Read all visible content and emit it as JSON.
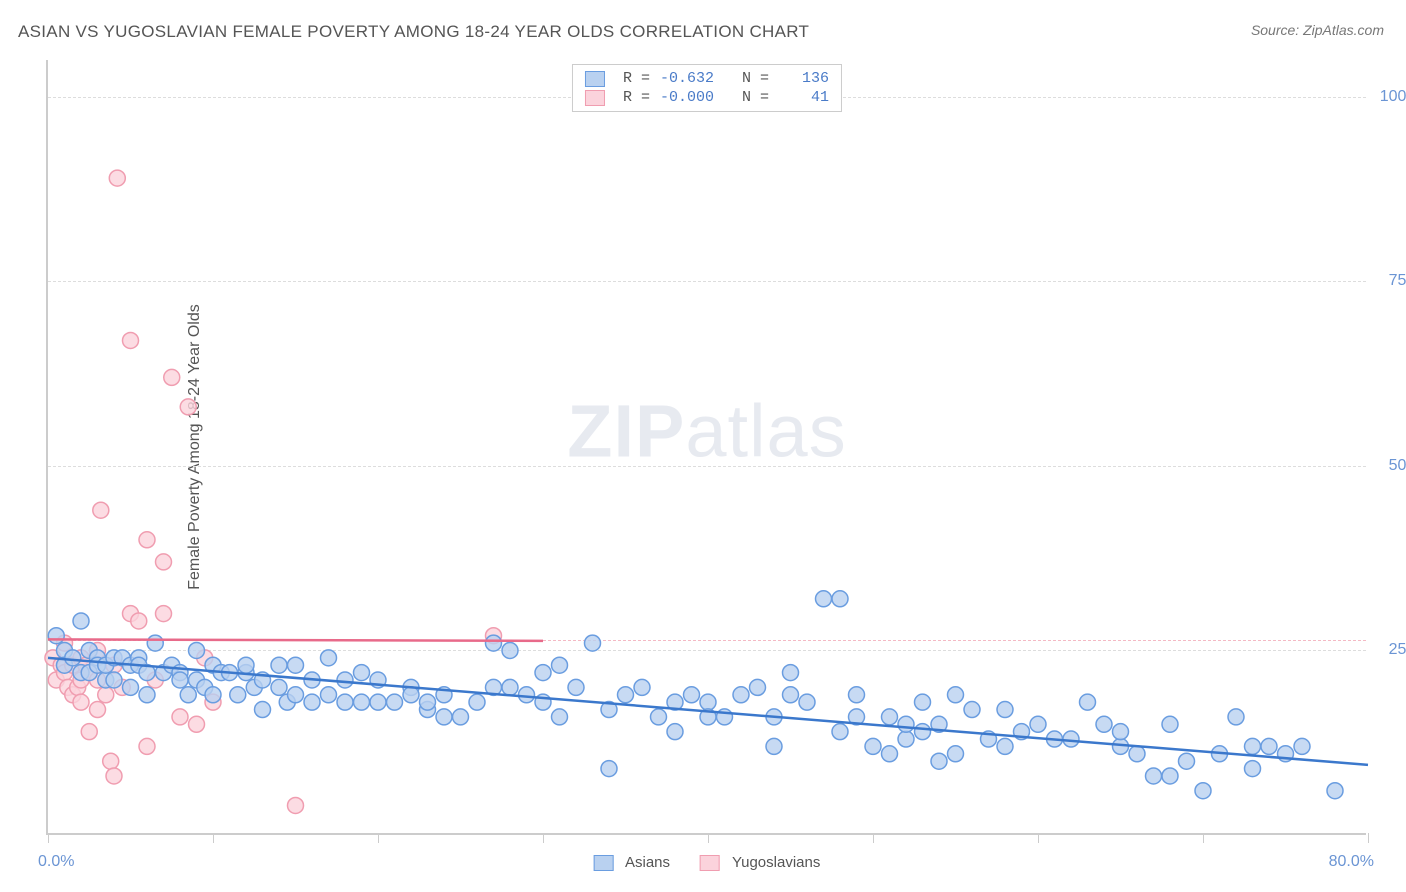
{
  "title": "ASIAN VS YUGOSLAVIAN FEMALE POVERTY AMONG 18-24 YEAR OLDS CORRELATION CHART",
  "source": "Source: ZipAtlas.com",
  "ylabel": "Female Poverty Among 18-24 Year Olds",
  "watermark_bold": "ZIP",
  "watermark_rest": "atlas",
  "chart": {
    "type": "scatter",
    "background_color": "#ffffff",
    "grid_color": "#dddddd",
    "axis_color": "#cccccc",
    "xlim": [
      0,
      80
    ],
    "ylim": [
      0,
      105
    ],
    "x_left_label": "0.0%",
    "x_right_label": "80.0%",
    "xtick_positions": [
      0,
      10,
      20,
      30,
      40,
      50,
      60,
      70,
      80
    ],
    "yticks": [
      {
        "value": 25,
        "label": "25.0%"
      },
      {
        "value": 50,
        "label": "50.0%"
      },
      {
        "value": 75,
        "label": "75.0%"
      },
      {
        "value": 100,
        "label": "100.0%"
      }
    ],
    "marker_radius": 8,
    "marker_stroke_width": 1.5,
    "reg_line_width": 2.5,
    "label_fontsize": 16,
    "tick_fontsize": 16,
    "series": {
      "asians": {
        "label": "Asians",
        "fill": "#b9d1f0",
        "stroke": "#6a9de0",
        "reg_color": "#3b78cc",
        "R": "-0.632",
        "N": "136",
        "reg_line": {
          "x1": 0,
          "y1": 24,
          "x2": 80,
          "y2": 9.5
        },
        "points": [
          [
            0.5,
            27
          ],
          [
            1,
            25
          ],
          [
            1,
            23
          ],
          [
            1.5,
            24
          ],
          [
            2,
            29
          ],
          [
            2,
            22
          ],
          [
            2.5,
            22
          ],
          [
            2.5,
            25
          ],
          [
            3,
            24
          ],
          [
            3,
            23
          ],
          [
            3.5,
            21
          ],
          [
            3.5,
            23
          ],
          [
            4,
            21
          ],
          [
            4,
            24
          ],
          [
            4.5,
            24
          ],
          [
            5,
            23
          ],
          [
            5,
            20
          ],
          [
            5.5,
            24
          ],
          [
            5.5,
            23
          ],
          [
            6,
            22
          ],
          [
            6,
            19
          ],
          [
            6.5,
            26
          ],
          [
            7,
            22
          ],
          [
            7.5,
            23
          ],
          [
            8,
            22
          ],
          [
            8,
            21
          ],
          [
            8.5,
            19
          ],
          [
            9,
            21
          ],
          [
            9,
            25
          ],
          [
            9.5,
            20
          ],
          [
            10,
            23
          ],
          [
            10,
            19
          ],
          [
            10.5,
            22
          ],
          [
            11,
            22
          ],
          [
            11.5,
            19
          ],
          [
            12,
            22
          ],
          [
            12,
            23
          ],
          [
            12.5,
            20
          ],
          [
            13,
            21
          ],
          [
            13,
            17
          ],
          [
            14,
            20
          ],
          [
            14,
            23
          ],
          [
            14.5,
            18
          ],
          [
            15,
            23
          ],
          [
            15,
            19
          ],
          [
            16,
            21
          ],
          [
            16,
            18
          ],
          [
            17,
            19
          ],
          [
            17,
            24
          ],
          [
            18,
            18
          ],
          [
            18,
            21
          ],
          [
            19,
            18
          ],
          [
            19,
            22
          ],
          [
            20,
            18
          ],
          [
            20,
            21
          ],
          [
            21,
            18
          ],
          [
            22,
            20
          ],
          [
            22,
            19
          ],
          [
            23,
            17
          ],
          [
            23,
            18
          ],
          [
            24,
            16
          ],
          [
            24,
            19
          ],
          [
            25,
            16
          ],
          [
            26,
            18
          ],
          [
            27,
            20
          ],
          [
            27,
            26
          ],
          [
            28,
            20
          ],
          [
            28,
            25
          ],
          [
            29,
            19
          ],
          [
            30,
            18
          ],
          [
            30,
            22
          ],
          [
            31,
            23
          ],
          [
            31,
            16
          ],
          [
            32,
            20
          ],
          [
            33,
            26
          ],
          [
            34,
            17
          ],
          [
            34,
            9
          ],
          [
            35,
            19
          ],
          [
            36,
            20
          ],
          [
            37,
            16
          ],
          [
            38,
            18
          ],
          [
            38,
            14
          ],
          [
            39,
            19
          ],
          [
            40,
            18
          ],
          [
            40,
            16
          ],
          [
            41,
            16
          ],
          [
            42,
            19
          ],
          [
            43,
            20
          ],
          [
            44,
            16
          ],
          [
            44,
            12
          ],
          [
            45,
            19
          ],
          [
            45,
            22
          ],
          [
            46,
            18
          ],
          [
            47,
            32
          ],
          [
            48,
            32
          ],
          [
            48,
            14
          ],
          [
            49,
            16
          ],
          [
            49,
            19
          ],
          [
            50,
            12
          ],
          [
            51,
            11
          ],
          [
            51,
            16
          ],
          [
            52,
            13
          ],
          [
            52,
            15
          ],
          [
            53,
            18
          ],
          [
            53,
            14
          ],
          [
            54,
            10
          ],
          [
            54,
            15
          ],
          [
            55,
            11
          ],
          [
            55,
            19
          ],
          [
            56,
            17
          ],
          [
            57,
            13
          ],
          [
            58,
            12
          ],
          [
            58,
            17
          ],
          [
            59,
            14
          ],
          [
            60,
            15
          ],
          [
            61,
            13
          ],
          [
            62,
            13
          ],
          [
            63,
            18
          ],
          [
            64,
            15
          ],
          [
            65,
            12
          ],
          [
            65,
            14
          ],
          [
            66,
            11
          ],
          [
            67,
            8
          ],
          [
            68,
            8
          ],
          [
            68,
            15
          ],
          [
            69,
            10
          ],
          [
            70,
            6
          ],
          [
            71,
            11
          ],
          [
            72,
            16
          ],
          [
            73,
            9
          ],
          [
            73,
            12
          ],
          [
            74,
            12
          ],
          [
            75,
            11
          ],
          [
            78,
            6
          ],
          [
            76,
            12
          ]
        ]
      },
      "yugoslavians": {
        "label": "Yugoslavians",
        "fill": "#fbd3dc",
        "stroke": "#f09db0",
        "reg_color": "#e86a8a",
        "reg_dash_color": "#f4b9c4",
        "R": "-0.000",
        "N": "41",
        "reg_line_solid": {
          "x1": 0,
          "y1": 26.5,
          "x2": 30,
          "y2": 26.3
        },
        "reg_dash_y": 26.4,
        "points": [
          [
            0.3,
            24
          ],
          [
            0.5,
            21
          ],
          [
            0.8,
            23
          ],
          [
            1,
            26
          ],
          [
            1,
            22
          ],
          [
            1.2,
            20
          ],
          [
            1.5,
            23
          ],
          [
            1.5,
            19
          ],
          [
            1.8,
            20
          ],
          [
            2,
            21
          ],
          [
            2,
            18
          ],
          [
            2,
            24
          ],
          [
            2.3,
            23
          ],
          [
            2.5,
            22
          ],
          [
            2.5,
            14
          ],
          [
            3,
            21
          ],
          [
            3,
            17
          ],
          [
            3,
            25
          ],
          [
            3.2,
            44
          ],
          [
            3.5,
            19
          ],
          [
            3.8,
            10
          ],
          [
            4,
            23
          ],
          [
            4,
            8
          ],
          [
            4.2,
            89
          ],
          [
            4.5,
            20
          ],
          [
            5,
            30
          ],
          [
            5,
            67
          ],
          [
            5.5,
            29
          ],
          [
            6,
            12
          ],
          [
            6,
            40
          ],
          [
            6.5,
            21
          ],
          [
            7,
            37
          ],
          [
            7,
            30
          ],
          [
            7.5,
            62
          ],
          [
            8,
            16
          ],
          [
            8.5,
            58
          ],
          [
            9,
            15
          ],
          [
            9.5,
            24
          ],
          [
            10,
            18
          ],
          [
            15,
            4
          ],
          [
            27,
            27
          ]
        ]
      }
    }
  },
  "top_legend": {
    "R_label": "R =",
    "N_label": "N ="
  }
}
